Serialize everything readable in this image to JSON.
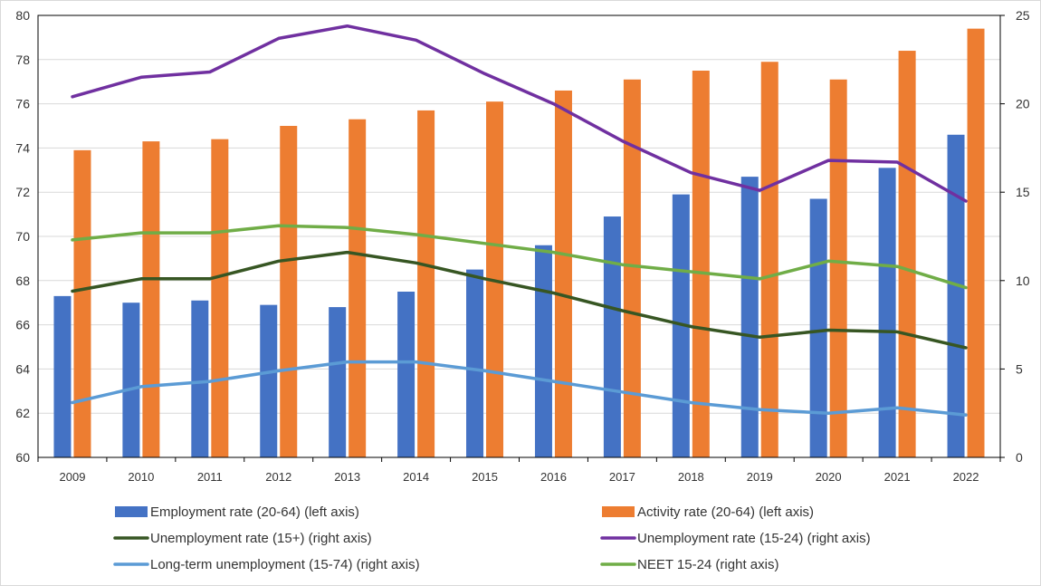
{
  "chart_data": {
    "type": "bar",
    "categories": [
      "2009",
      "2010",
      "2011",
      "2012",
      "2013",
      "2014",
      "2015",
      "2016",
      "2017",
      "2018",
      "2019",
      "2020",
      "2021",
      "2022"
    ],
    "left_axis": {
      "ylim": [
        60,
        80
      ],
      "ticks": [
        "60",
        "62",
        "64",
        "66",
        "68",
        "70",
        "72",
        "74",
        "76",
        "78",
        "80"
      ]
    },
    "right_axis": {
      "ylim": [
        0,
        25
      ],
      "ticks": [
        "0",
        "5",
        "10",
        "15",
        "20",
        "25"
      ]
    },
    "grid": true,
    "legend_position": "bottom",
    "bar_series": [
      {
        "name": "Employment rate (20-64) (left axis)",
        "axis": "left",
        "color": "#4472C4",
        "values": [
          67.3,
          67.0,
          67.1,
          66.9,
          66.8,
          67.5,
          68.5,
          69.6,
          70.9,
          71.9,
          72.7,
          71.7,
          73.1,
          74.6
        ]
      },
      {
        "name": "Activity rate (20-64) (left axis)",
        "axis": "left",
        "color": "#ED7D31",
        "values": [
          73.9,
          74.3,
          74.4,
          75.0,
          75.3,
          75.7,
          76.1,
          76.6,
          77.1,
          77.5,
          77.9,
          77.1,
          78.4,
          79.4
        ]
      }
    ],
    "line_series": [
      {
        "name": "Unemployment rate (15+) (right axis)",
        "axis": "right",
        "color": "#375623",
        "values": [
          9.4,
          10.1,
          10.1,
          11.1,
          11.6,
          11.0,
          10.1,
          9.3,
          8.3,
          7.4,
          6.8,
          7.2,
          7.1,
          6.2
        ]
      },
      {
        "name": "Unemployment rate (15-24) (right axis)",
        "axis": "right",
        "color": "#7030A0",
        "values": [
          20.4,
          21.5,
          21.8,
          23.7,
          24.4,
          23.6,
          21.7,
          20.0,
          17.9,
          16.1,
          15.1,
          16.8,
          16.7,
          14.5
        ]
      },
      {
        "name": "Long-term unemployment (15-74) (right axis)",
        "axis": "right",
        "color": "#5B9BD5",
        "values": [
          3.1,
          4.0,
          4.3,
          4.9,
          5.4,
          5.4,
          4.9,
          4.3,
          3.7,
          3.1,
          2.7,
          2.5,
          2.8,
          2.4
        ]
      },
      {
        "name": "NEET 15-24 (right axis)",
        "axis": "right",
        "color": "#70AD47",
        "values": [
          12.3,
          12.7,
          12.7,
          13.1,
          13.0,
          12.6,
          12.1,
          11.6,
          10.9,
          10.5,
          10.1,
          11.1,
          10.8,
          9.6
        ]
      }
    ],
    "legend": [
      {
        "label": "Employment rate (20-64) (left axis)",
        "kind": "bar",
        "color": "#4472C4"
      },
      {
        "label": "Activity rate (20-64) (left axis)",
        "kind": "bar",
        "color": "#ED7D31"
      },
      {
        "label": "Unemployment rate (15+) (right axis)",
        "kind": "line",
        "color": "#375623"
      },
      {
        "label": "Unemployment rate (15-24) (right axis)",
        "kind": "line",
        "color": "#7030A0"
      },
      {
        "label": "Long-term unemployment (15-74) (right axis)",
        "kind": "line",
        "color": "#5B9BD5"
      },
      {
        "label": "NEET 15-24 (right axis)",
        "kind": "line",
        "color": "#70AD47"
      }
    ]
  }
}
